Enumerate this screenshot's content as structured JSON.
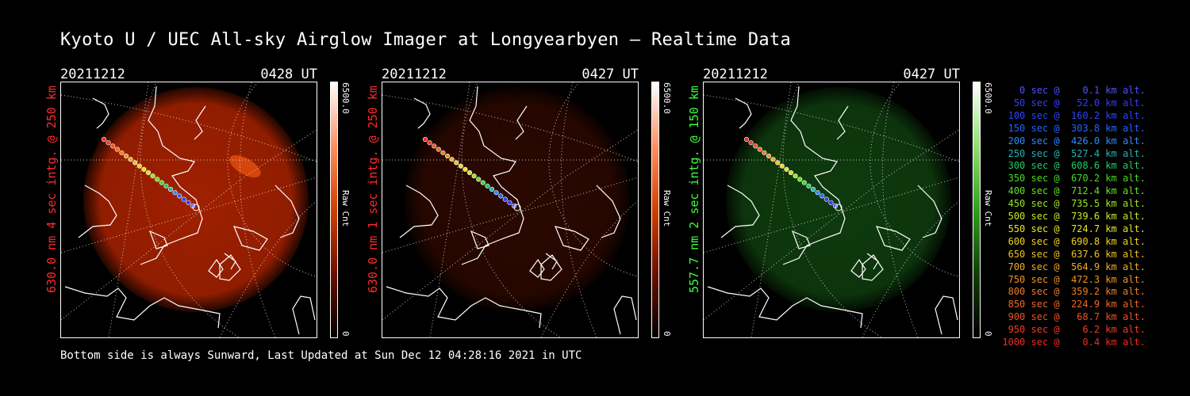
{
  "title": "Kyoto U / UEC All-sky Airglow Imager at Longyearbyen — Realtime Data",
  "panels": [
    {
      "date": "20211212",
      "time": "0428 UT",
      "side_label": "630.0 nm 4 sec intg. @ 250 km",
      "label_color": "#ff2a2a",
      "cbar_top": "6500.0",
      "cbar_mid": "Raw Cnt",
      "cbar_bottom": "0",
      "glow": "#a02000",
      "cmap": "red"
    },
    {
      "date": "20211212",
      "time": "0427 UT",
      "side_label": "630.0 nm 1 sec intg. @ 250 km",
      "label_color": "#ff2a2a",
      "cbar_top": "6500.0",
      "cbar_mid": "Raw Cnt",
      "cbar_bottom": "0",
      "glow": "#2a0800",
      "cmap": "red"
    },
    {
      "date": "20211212",
      "time": "0427 UT",
      "side_label": "557.7 nm 2 sec intg. @ 150 km",
      "label_color": "#3cff3c",
      "cbar_top": "6500.0",
      "cbar_mid": "Raw Cnt",
      "cbar_bottom": "0",
      "glow": "#0e3a0e",
      "cmap": "green"
    }
  ],
  "footer": "Bottom side is always Sunward, Last Updated at Sun Dec 12 04:28:16 2021 in UTC",
  "legend": [
    {
      "text": "   0 sec @    0.1 km alt.",
      "color": "#5050ff"
    },
    {
      "text": "  50 sec @   52.0 km alt.",
      "color": "#3a3aff"
    },
    {
      "text": " 100 sec @  160.2 km alt.",
      "color": "#2a44ff"
    },
    {
      "text": " 150 sec @  303.8 km alt.",
      "color": "#2266ff"
    },
    {
      "text": " 200 sec @  426.0 km alt.",
      "color": "#2a8cff"
    },
    {
      "text": " 250 sec @  527.4 km alt.",
      "color": "#22b4b4"
    },
    {
      "text": " 300 sec @  608.6 km alt.",
      "color": "#22cc66"
    },
    {
      "text": " 350 sec @  670.2 km alt.",
      "color": "#44dd22"
    },
    {
      "text": " 400 sec @  712.4 km alt.",
      "color": "#66e022"
    },
    {
      "text": " 450 sec @  735.5 km alt.",
      "color": "#a0e622"
    },
    {
      "text": " 500 sec @  739.6 km alt.",
      "color": "#cce622"
    },
    {
      "text": " 550 sec @  724.7 km alt.",
      "color": "#e6e622"
    },
    {
      "text": " 600 sec @  690.8 km alt.",
      "color": "#f0d622"
    },
    {
      "text": " 650 sec @  637.6 km alt.",
      "color": "#f0c022"
    },
    {
      "text": " 700 sec @  564.9 km alt.",
      "color": "#f0aa22"
    },
    {
      "text": " 750 sec @  472.3 km alt.",
      "color": "#f09422"
    },
    {
      "text": " 800 sec @  359.2 km alt.",
      "color": "#f07e22"
    },
    {
      "text": " 850 sec @  224.9 km alt.",
      "color": "#f06822"
    },
    {
      "text": " 900 sec @   68.7 km alt.",
      "color": "#f05222"
    },
    {
      "text": " 950 sec @    6.2 km alt.",
      "color": "#f03c22"
    },
    {
      "text": "1000 sec @    0.4 km alt.",
      "color": "#f02a22"
    }
  ]
}
